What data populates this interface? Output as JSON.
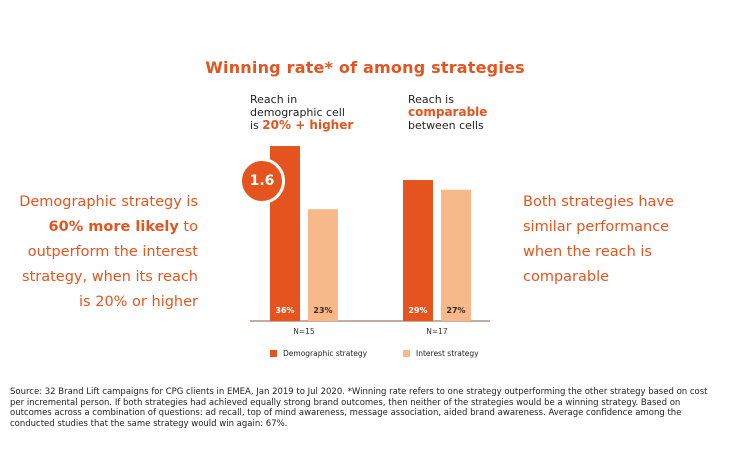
{
  "title": "Winning rate* of among strategies",
  "left_callout": {
    "line1": "Demographic strategy is",
    "bold": "60% more likely",
    "line2_rest": " to",
    "line3": "outperform the interest",
    "line4": "strategy, when its reach",
    "line5": "is 20% or higher"
  },
  "right_callout": {
    "line1": "Both strategies have",
    "line2": "similar performance",
    "line3": "when the reach is",
    "line4": "comparable"
  },
  "group_notes": {
    "group1": {
      "line1": "Reach in",
      "line2": "demographic cell",
      "line3_prefix": "is ",
      "line3_highlight": "20% + higher"
    },
    "group2": {
      "line1": "Reach is",
      "line2_highlight": "comparable",
      "line3": "between cells"
    }
  },
  "badge": "1.6",
  "colors": {
    "demographic": "#e5541f",
    "interest": "#f8b98a",
    "accent": "#e5541f"
  },
  "chart_data": {
    "type": "bar",
    "categories": [
      "N=15",
      "N=17"
    ],
    "series": [
      {
        "name": "Demographic strategy",
        "values": [
          36,
          29
        ],
        "labels": [
          "36%",
          "29%"
        ]
      },
      {
        "name": "Interest strategy",
        "values": [
          23,
          27
        ],
        "labels": [
          "23%",
          "27%"
        ]
      }
    ],
    "ylim": [
      0,
      36
    ],
    "legend_position": "bottom",
    "grid": false
  },
  "legend": [
    {
      "label": "Demographic strategy",
      "color": "#e5541f"
    },
    {
      "label": "Interest strategy",
      "color": "#f8b98a"
    }
  ],
  "source": "Source: 32 Brand Lift campaigns for CPG clients in EMEA, Jan 2019 to Jul 2020. *Winning rate refers to one strategy outperforming the other strategy based on cost per incremental person. If both strategies had achieved equally strong brand outcomes, then neither of the strategies would be a winning strategy.  Based on outcomes across a combination of questions: ad recall, top of mind awareness, message association, aided brand awareness. Average confidence among the conducted studies that the same strategy would win again: 67%."
}
